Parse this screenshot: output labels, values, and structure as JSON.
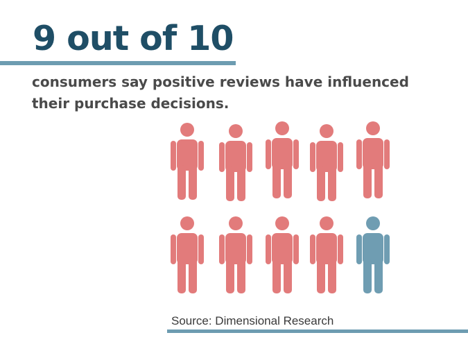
{
  "headline": "9 out of 10",
  "subtitle": "consumers say positive reviews have influenced their purchase decisions.",
  "source": "Source: Dimensional Research",
  "colors": {
    "headline": "#1f4e66",
    "rule": "#6d9cb1",
    "subtitle": "#4a4a4a",
    "person_highlighted": "#e27b7b",
    "person_other": "#6f9db2"
  },
  "people": {
    "icon": "person-icon",
    "total": 10,
    "highlighted": 9
  }
}
